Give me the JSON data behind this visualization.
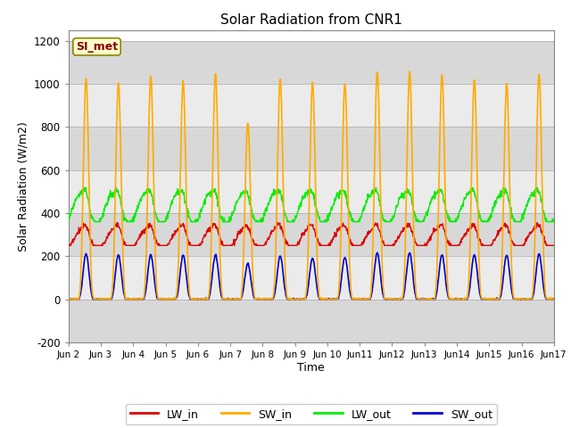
{
  "title": "Solar Radiation from CNR1",
  "xlabel": "Time",
  "ylabel": "Solar Radiation (W/m2)",
  "ylim": [
    -200,
    1250
  ],
  "yticks": [
    -200,
    0,
    200,
    400,
    600,
    800,
    1000,
    1200
  ],
  "n_days": 15,
  "colors": {
    "LW_in": "#dd0000",
    "SW_in": "#ffaa00",
    "LW_out": "#00ee00",
    "SW_out": "#0000cc"
  },
  "bg_color": "#ffffff",
  "band_colors": [
    "#d8d8d8",
    "#ebebeb"
  ],
  "annotation_box": {
    "text": "SI_met",
    "facecolor": "#ffffcc",
    "edgecolor": "#888800",
    "textcolor": "#880000"
  },
  "sw_in_peaks": [
    1025,
    1005,
    1035,
    1010,
    1045,
    820,
    1025,
    1005,
    1000,
    1058,
    1058,
    1038,
    1018,
    1002,
    1048
  ],
  "lw_in_base": 280,
  "lw_out_base": 420,
  "sw_out_peak": 205
}
